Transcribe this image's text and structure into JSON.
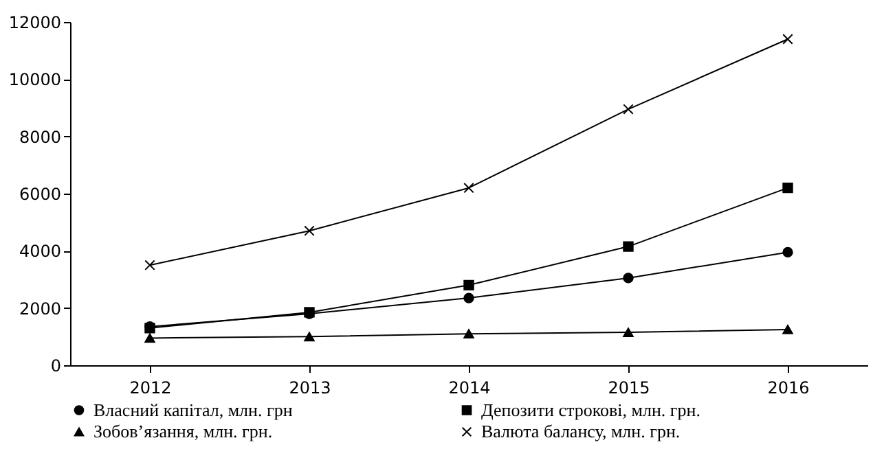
{
  "chart_data": {
    "type": "line",
    "categories": [
      "2012",
      "2013",
      "2014",
      "2015",
      "2016"
    ],
    "ylim": [
      0,
      12000
    ],
    "yticks": [
      0,
      2000,
      4000,
      6000,
      8000,
      10000,
      12000
    ],
    "grid": false,
    "legend": "bottom",
    "series": [
      {
        "name": "Власний капітал, млн. грн",
        "color": "#000000",
        "marker": "circle",
        "values": [
          1350,
          1800,
          2350,
          3050,
          3950
        ]
      },
      {
        "name": "Депозити строкові, млн. грн.",
        "color": "#000000",
        "marker": "square",
        "values": [
          1300,
          1850,
          2800,
          4150,
          6200
        ]
      },
      {
        "name": "Зобов’язання, млн. грн.",
        "color": "#000000",
        "marker": "triangle",
        "values": [
          950,
          1000,
          1100,
          1150,
          1250
        ]
      },
      {
        "name": "Валюта балансу, млн. грн.",
        "color": "#000000",
        "marker": "cross",
        "values": [
          3500,
          4700,
          6200,
          8950,
          11400
        ]
      }
    ]
  }
}
